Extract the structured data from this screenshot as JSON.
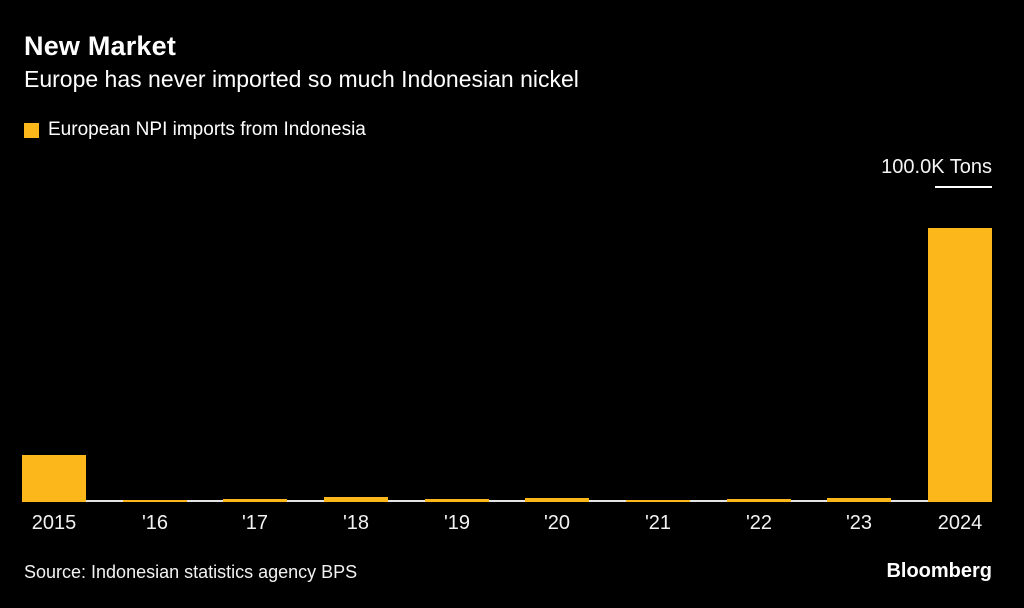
{
  "header": {
    "title": "New Market",
    "subtitle": "Europe has never imported so much Indonesian nickel"
  },
  "legend": {
    "label": "European NPI imports from Indonesia",
    "swatch_color": "#FCB81A"
  },
  "chart_data": {
    "type": "bar",
    "title": "New Market",
    "subtitle": "Europe has never imported so much Indonesian nickel",
    "series_name": "European NPI imports from Indonesia",
    "categories": [
      "2015",
      "'16",
      "'17",
      "'18",
      "'19",
      "'20",
      "'21",
      "'22",
      "'23",
      "2024"
    ],
    "values": [
      15.0,
      0.6,
      0.8,
      1.6,
      1.1,
      1.4,
      0.6,
      0.8,
      1.4,
      87.5
    ],
    "unit": "K Tons",
    "xlabel": "",
    "ylabel": "",
    "ylim": [
      0,
      100
    ],
    "yticks": [
      {
        "value": 100,
        "label": "100.0K Tons"
      },
      {
        "value": 50,
        "label": "50.0"
      },
      {
        "value": 0,
        "label": "0"
      }
    ],
    "bar_color": "#FCB81A",
    "background_color": "#000000",
    "axis_line_color": "#E4E4E4",
    "tick_color": "#FFFFFF",
    "text_color": "#FFFFFF",
    "grid": "off",
    "legend_position": "top-left",
    "y_axis_side": "right"
  },
  "footer": {
    "source": "Source: Indonesian statistics agency BPS",
    "brand": "Bloomberg"
  }
}
